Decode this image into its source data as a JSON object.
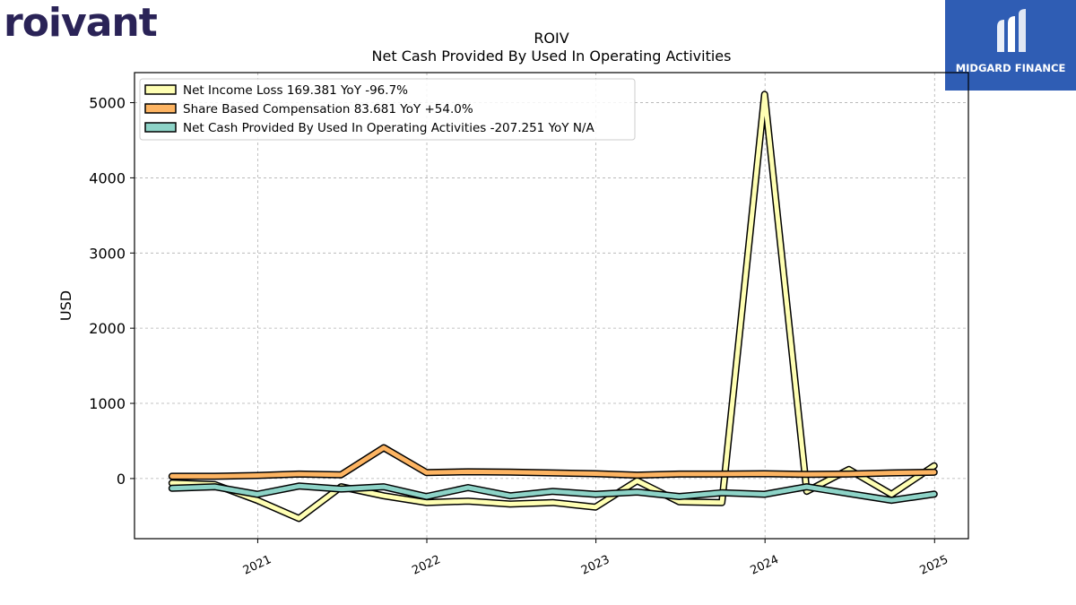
{
  "branding": {
    "left_logo_text": "roivant",
    "right_logo_text": "MIDGARD FINANCE",
    "right_logo_color": "#2f5db4",
    "left_logo_color": "#2a2357"
  },
  "chart_data": {
    "type": "line",
    "title": "ROIV",
    "subtitle": "Net Cash Provided By Used In Operating Activities",
    "ylabel": "USD",
    "xlabel": "",
    "ylim": [
      -800,
      5400
    ],
    "xlim": [
      "2020-04-10",
      "2025-03-15"
    ],
    "yticks": [
      0,
      1000,
      2000,
      3000,
      4000,
      5000
    ],
    "xticks": [
      "2021",
      "2022",
      "2023",
      "2024",
      "2025"
    ],
    "grid": true,
    "legend_position": "top-left",
    "x": [
      "2020-06-30",
      "2020-09-30",
      "2020-12-31",
      "2021-03-31",
      "2021-06-30",
      "2021-09-30",
      "2021-12-31",
      "2022-03-31",
      "2022-06-30",
      "2022-09-30",
      "2022-12-31",
      "2023-03-31",
      "2023-06-30",
      "2023-09-30",
      "2023-12-31",
      "2024-03-31",
      "2024-06-30",
      "2024-09-30",
      "2024-12-31"
    ],
    "series": [
      {
        "name": "Net Income Loss  169.381 YoY -96.7%",
        "color": "#ffffb3",
        "values": [
          -60,
          -80,
          -290,
          -530,
          -110,
          -230,
          -320,
          -300,
          -340,
          -320,
          -380,
          -30,
          -310,
          -320,
          5110,
          -170,
          120,
          -210,
          169.381
        ]
      },
      {
        "name": "Share Based Compensation  83.681 YoY +54.0%",
        "color": "#fdb462",
        "values": [
          30,
          30,
          40,
          60,
          50,
          410,
          80,
          90,
          85,
          75,
          65,
          45,
          60,
          60,
          65,
          55,
          60,
          75,
          83.681
        ]
      },
      {
        "name": "Net Cash Provided By Used In Operating Activities  -207.251 YoY N/A",
        "color": "#8dd3c7",
        "values": [
          -130,
          -110,
          -210,
          -100,
          -140,
          -110,
          -240,
          -120,
          -230,
          -170,
          -210,
          -180,
          -240,
          -190,
          -210,
          -110,
          -200,
          -290,
          -207.251
        ]
      }
    ]
  }
}
